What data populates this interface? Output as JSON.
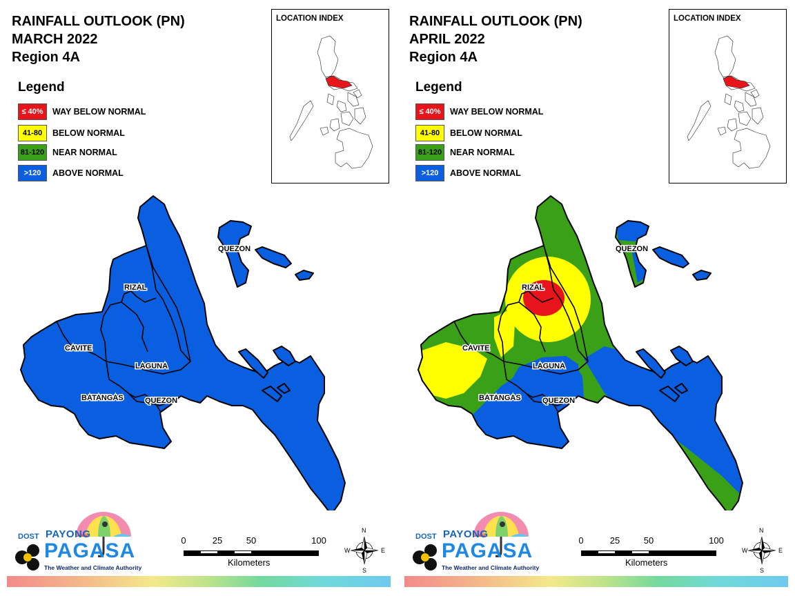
{
  "left": {
    "title_line1": "RAINFALL OUTLOOK (PN)",
    "title_line2": "MARCH 2022",
    "title_line3": "Region 4A"
  },
  "right": {
    "title_line1": "RAINFALL OUTLOOK (PN)",
    "title_line2": "APRIL 2022",
    "title_line3": "Region 4A"
  },
  "legend": {
    "heading": "Legend",
    "items": [
      {
        "range": "≤ 40%",
        "label": "WAY BELOW NORMAL",
        "color": "#e8141b",
        "text_color": "#ffffff"
      },
      {
        "range": "41-80",
        "label": "BELOW NORMAL",
        "color": "#ffff00",
        "text_color": "#000000"
      },
      {
        "range": "81-120",
        "label": "NEAR NORMAL",
        "color": "#3aa017",
        "text_color": "#000000"
      },
      {
        "range": ">120",
        "label": "ABOVE NORMAL",
        "color": "#0a5fe0",
        "text_color": "#ffffff"
      }
    ]
  },
  "location_index": {
    "title": "LOCATION INDEX",
    "highlight_color": "#e8141b"
  },
  "provinces": {
    "rizal": "RIZAL",
    "cavite": "CAVITE",
    "laguna": "LAGUNA",
    "batangas": "BATANGAS",
    "quezon_south": "QUEZON",
    "quezon_north": "QUEZON"
  },
  "logo": {
    "dost": "DOST",
    "payong": "PAYONG",
    "pagasa": "PAGASA",
    "tagline": "The Weather and Climate Authority"
  },
  "scale": {
    "ticks": [
      "0",
      "25",
      "50",
      "100"
    ],
    "unit": "Kilometers"
  },
  "compass": {
    "n": "N",
    "s": "S",
    "e": "E",
    "w": "W"
  }
}
